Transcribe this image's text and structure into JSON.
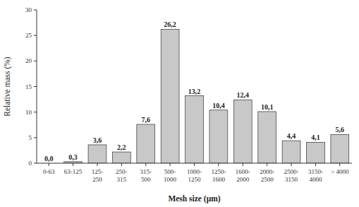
{
  "chart_data": {
    "type": "bar",
    "categories": [
      "0-63",
      "63-125",
      "125-\n250",
      "250-\n315",
      "315-\n500",
      "500-\n1000",
      "1000-\n1250",
      "1250-\n1600",
      "1600-\n2000",
      "2000-\n2500",
      "2500-\n3150",
      "3150-\n4000",
      "> 4000"
    ],
    "values": [
      0.0,
      0.3,
      3.6,
      2.2,
      7.6,
      26.2,
      13.2,
      10.4,
      12.4,
      10.1,
      4.4,
      4.1,
      5.6
    ],
    "value_labels": [
      "0,0",
      "0,3",
      "3,6",
      "2,2",
      "7,6",
      "26,2",
      "13,2",
      "10,4",
      "12,4",
      "10,1",
      "4,4",
      "4,1",
      "5,6"
    ],
    "data_labels": true,
    "color": "#c8c8c8",
    "xlabel": "Mesh size (μm)",
    "ylabel": "Relative mass (%)",
    "ylim": [
      0,
      30
    ],
    "yticks": [
      0,
      5,
      10,
      15,
      20,
      25,
      30
    ],
    "grid": false
  }
}
